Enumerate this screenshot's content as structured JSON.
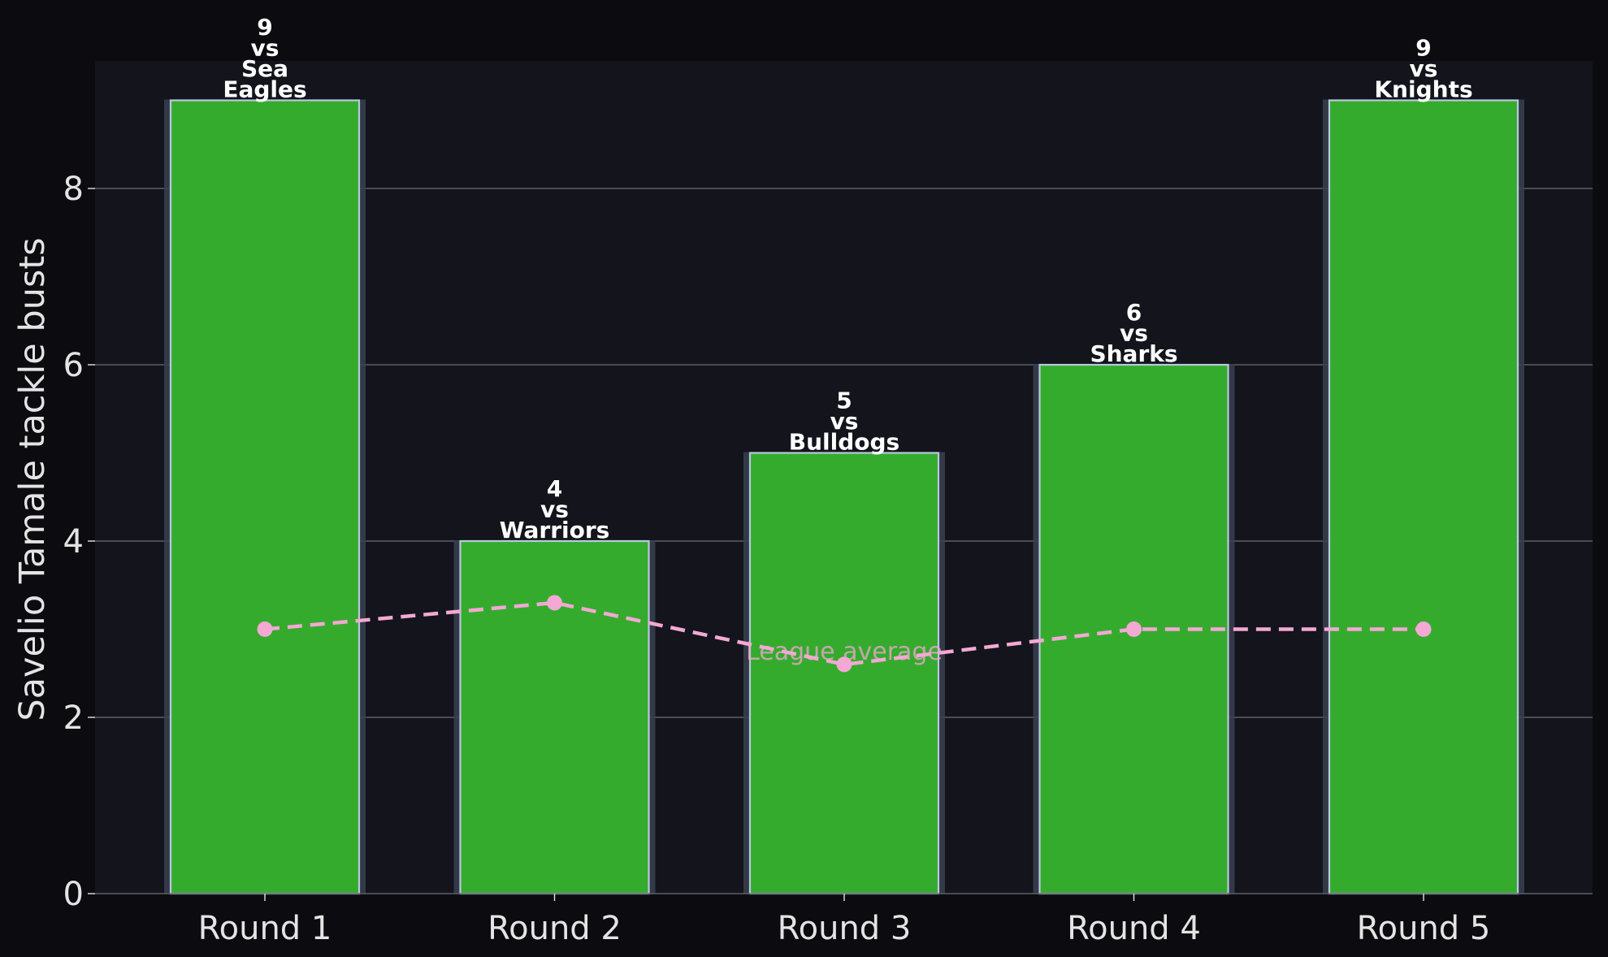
{
  "chart_data": {
    "type": "bar",
    "title": "",
    "xlabel": "",
    "ylabel": "Savelio Tamale tackle busts",
    "categories": [
      "Round 1",
      "Round 2",
      "Round 3",
      "Round 4",
      "Round 5"
    ],
    "series": [
      {
        "values": [
          9,
          4,
          5,
          6,
          9
        ],
        "annotations": [
          [
            "9",
            "vs",
            "Sea",
            "Eagles"
          ],
          [
            "4",
            "vs",
            "Warriors"
          ],
          [
            "5",
            "vs",
            "Bulldogs"
          ],
          [
            "6",
            "vs",
            "Sharks"
          ],
          [
            "9",
            "vs",
            "Knights"
          ]
        ]
      },
      {
        "name": "League average",
        "style": "dashed-line-with-markers",
        "values": [
          3.0,
          3.3,
          2.6,
          3.0,
          3.0
        ]
      }
    ],
    "yticks": [
      0,
      2,
      4,
      6,
      8
    ],
    "ylim": [
      0,
      9.45
    ],
    "grid": "horizontal",
    "legend": "none",
    "colors": {
      "page_background": "#0c0c10",
      "plot_background": "#13141c",
      "bar_fill": "#35ab2e",
      "bar_edge": "#b9c8de",
      "bar_shadow": "#3a3f4f",
      "average_line": "#f4a8d4",
      "grid": "#5d5f66",
      "axis_text": "#e4e4e4",
      "annotation_text": "#ffffff"
    }
  }
}
